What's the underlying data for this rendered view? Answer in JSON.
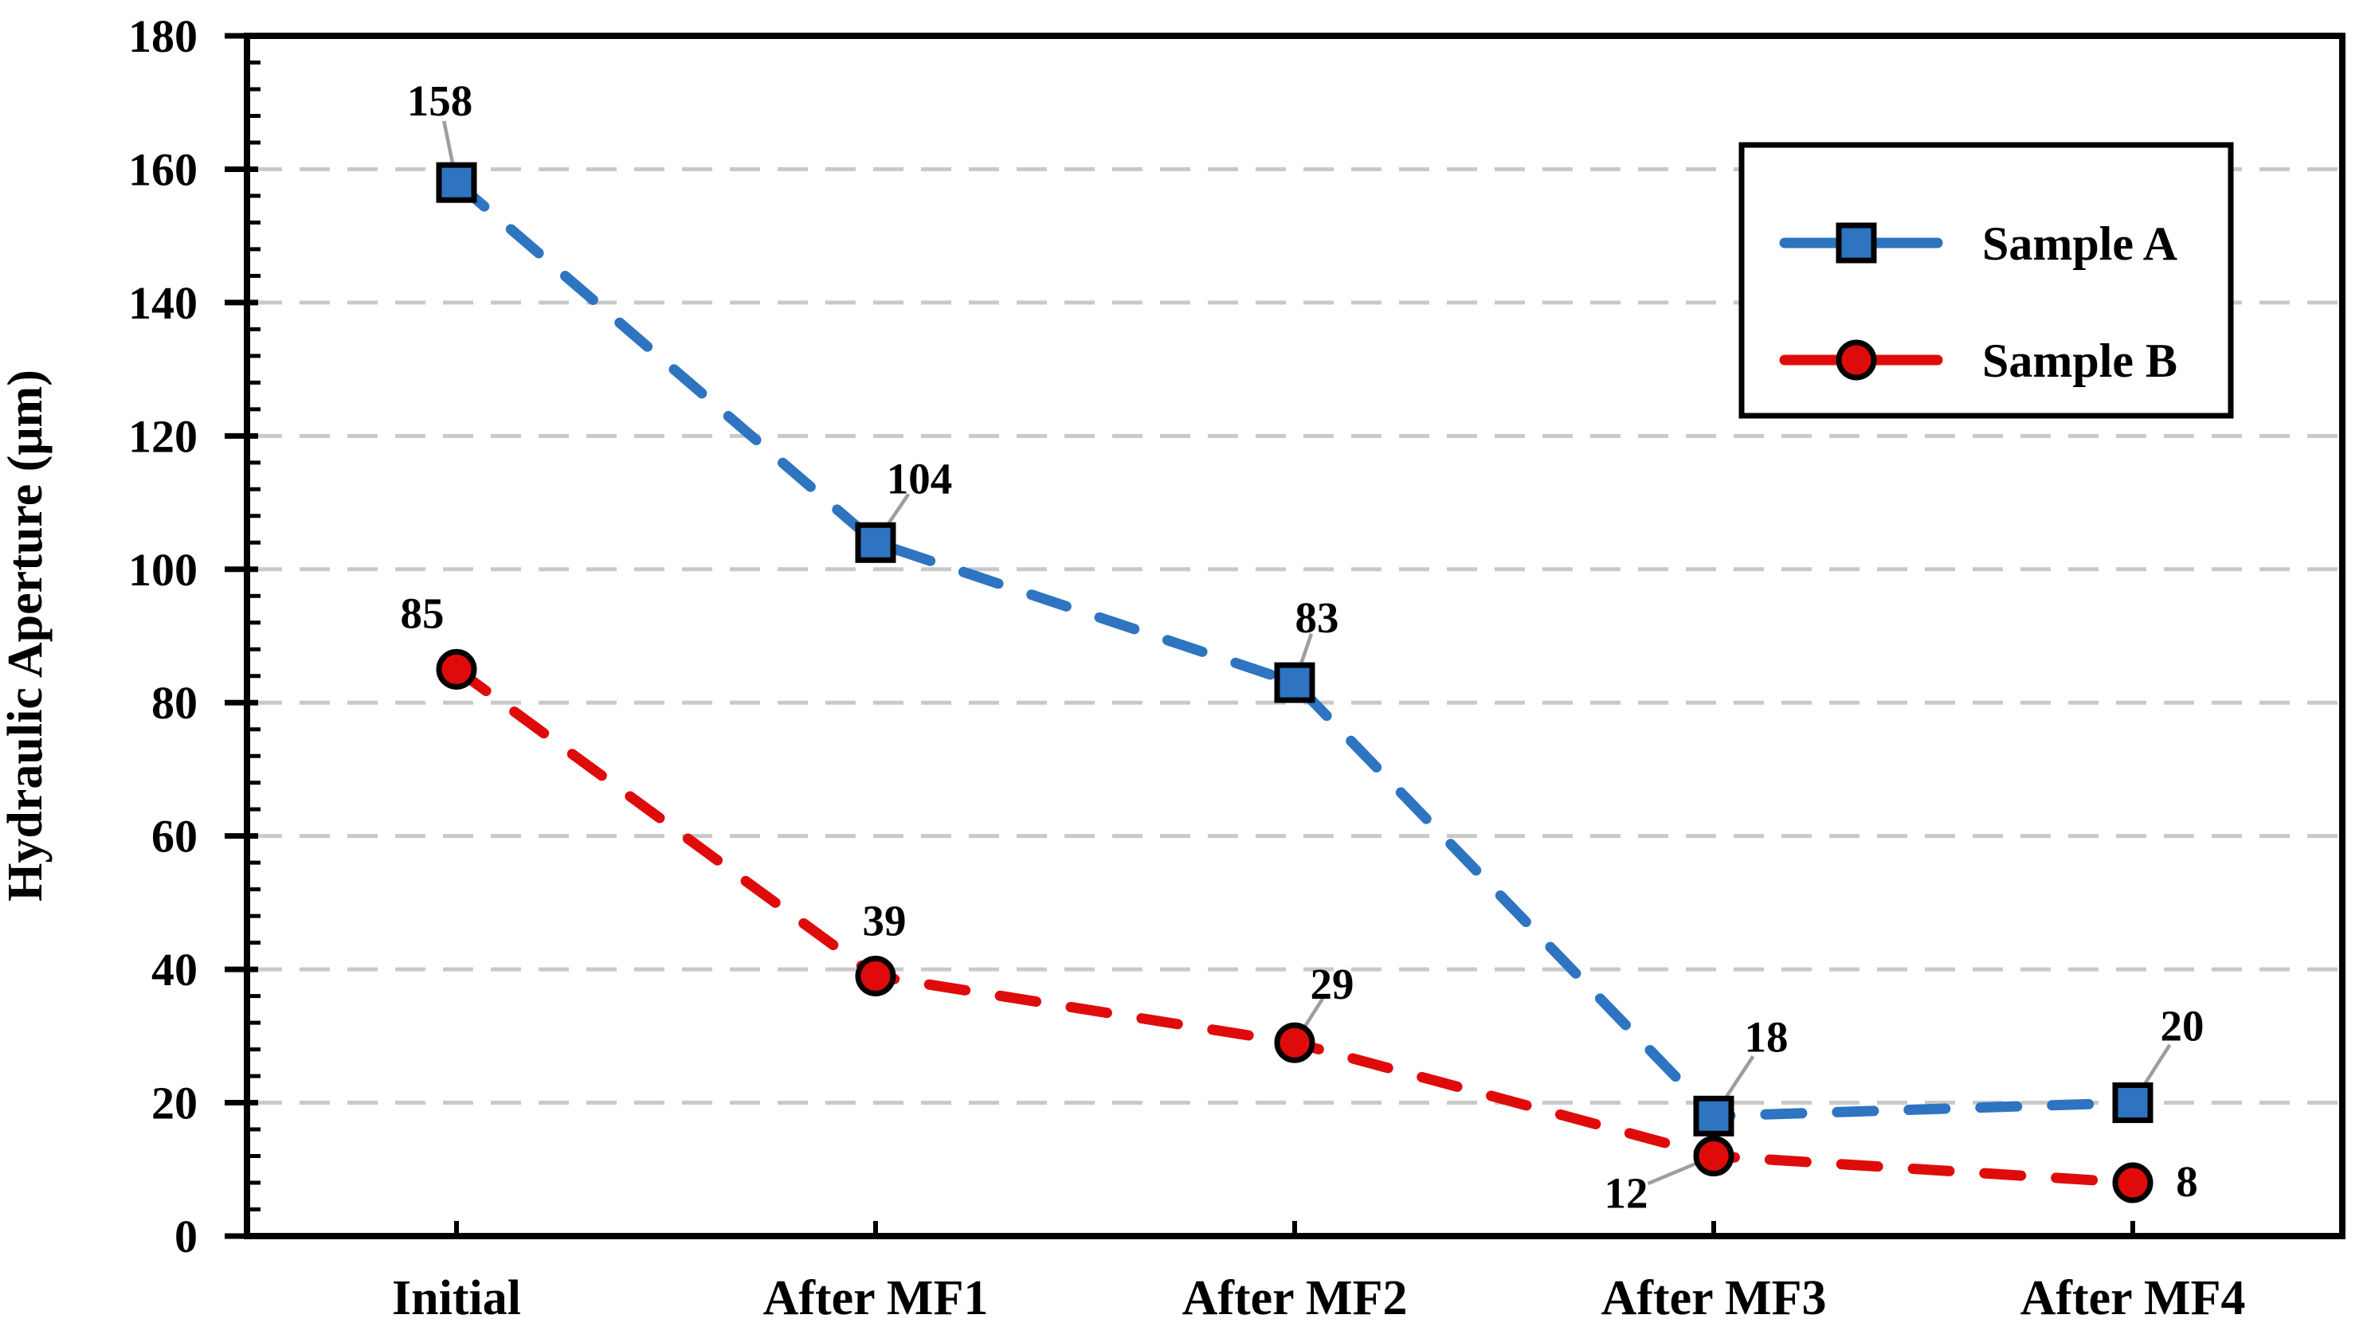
{
  "chart_data": {
    "type": "line",
    "title": "",
    "xlabel": "",
    "ylabel": "Hydraulic Aperture (μm)",
    "ylim": [
      0,
      180
    ],
    "ytick_step": 20,
    "yminor_step": 4,
    "grid": "horizontal-dashed",
    "legend_position": "top-right",
    "categories": [
      "Initial",
      "After MF1",
      "After MF2",
      "After MF3",
      "After MF4"
    ],
    "series": [
      {
        "name": "Sample A",
        "color": "#2E74C0",
        "marker": "square",
        "line_style": "dashed",
        "values": [
          158,
          104,
          83,
          18,
          20
        ],
        "point_labels": [
          {
            "text": "158",
            "dx": -21,
            "dy": -103,
            "leader": true
          },
          {
            "text": "104",
            "dx": 55,
            "dy": -81,
            "leader": true
          },
          {
            "text": "83",
            "dx": 28,
            "dy": -82,
            "leader": true
          },
          {
            "text": "18",
            "dx": 66,
            "dy": -100,
            "leader": true
          },
          {
            "text": "20",
            "dx": 62,
            "dy": -97,
            "leader": true
          }
        ]
      },
      {
        "name": "Sample B",
        "color": "#DF0B0B",
        "marker": "circle",
        "line_style": "dashed",
        "values": [
          85,
          39,
          29,
          12,
          8
        ],
        "point_labels": [
          {
            "text": "85",
            "dx": -43,
            "dy": -71,
            "leader": false
          },
          {
            "text": "39",
            "dx": 11,
            "dy": -70,
            "leader": false
          },
          {
            "text": "29",
            "dx": 47,
            "dy": -74,
            "leader": true
          },
          {
            "text": "12",
            "dx": -110,
            "dy": 46,
            "leader": true
          },
          {
            "text": "8",
            "dx": 68,
            "dy": -2,
            "leader": false
          }
        ]
      }
    ],
    "colors": {
      "grid": "#C9C9C9",
      "axis": "#000000",
      "leader": "#9E9E9E",
      "background": "#FFFFFF",
      "text": "#000000"
    }
  }
}
